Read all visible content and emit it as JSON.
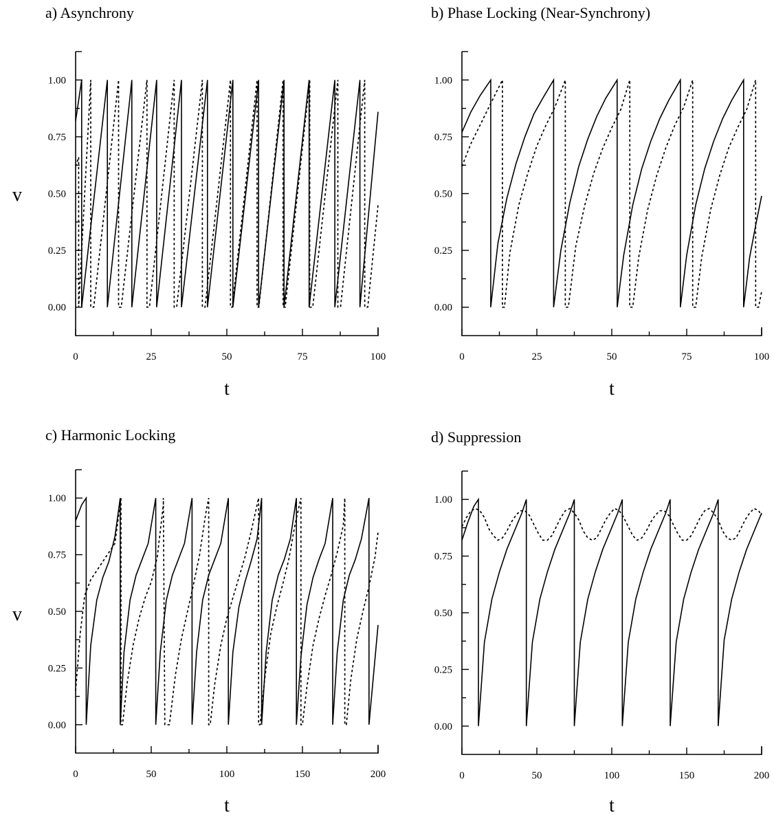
{
  "chart_data": [
    {
      "type": "line",
      "title": "a)  Asynchrony",
      "xlabel": "t",
      "ylabel": "v",
      "xlim": [
        0,
        100
      ],
      "ylim": [
        -0.125,
        1.125
      ],
      "xticks": [
        0,
        25,
        50,
        75,
        100
      ],
      "xtick_labels": [
        "0",
        "25",
        "50",
        "75",
        "100"
      ],
      "yticks": [
        0,
        0.25,
        0.5,
        0.75,
        1
      ],
      "ytick_labels": [
        "0.00",
        "0.25",
        "0.50",
        "0.75",
        "1.00"
      ],
      "grid": false,
      "series": [
        {
          "style": "solid",
          "x": [
            0,
            2,
            2.001,
            10.5,
            10.501,
            18.6,
            18.601,
            26.8,
            26.801,
            35,
            35.001,
            43.6,
            43.601,
            52,
            52.001,
            60.5,
            60.501,
            68.9,
            68.901,
            77.2,
            77.201,
            85.7,
            85.701,
            94,
            94.001,
            100
          ],
          "y": [
            0.82,
            1,
            0,
            1,
            0,
            1,
            0,
            1,
            0,
            1,
            0,
            1,
            0,
            1,
            0,
            1,
            0,
            1,
            0,
            1,
            0,
            1,
            0,
            1,
            0,
            0.86
          ]
        },
        {
          "style": "dotted",
          "x": [
            0,
            1,
            1.001,
            5,
            5.001,
            6,
            14.2,
            14.201,
            15.1,
            23.6,
            23.601,
            24.4,
            32.6,
            32.601,
            33.4,
            41.9,
            41.901,
            42.8,
            51.2,
            51.201,
            51.8,
            60,
            60.001,
            60.6,
            68.6,
            68.601,
            69.3,
            77.4,
            77.401,
            78.4,
            86.7,
            86.701,
            87.6,
            95.6,
            95.601,
            96.6,
            100
          ],
          "y": [
            0.62,
            0.66,
            0,
            1,
            0,
            0,
            1,
            0,
            0,
            1,
            0,
            0,
            1,
            0,
            0,
            1,
            0,
            0,
            1,
            0,
            0,
            1,
            0,
            0,
            1,
            0,
            0,
            1,
            0,
            0,
            1,
            0,
            0,
            1,
            0,
            0,
            0.45
          ]
        }
      ]
    },
    {
      "type": "line",
      "title": "b)  Phase Locking (Near-Synchrony)",
      "xlabel": "t",
      "ylabel": "",
      "xlim": [
        0,
        100
      ],
      "ylim": [
        -0.125,
        1.125
      ],
      "xticks": [
        0,
        25,
        50,
        75,
        100
      ],
      "xtick_labels": [
        "0",
        "25",
        "50",
        "75",
        "100"
      ],
      "yticks": [
        0,
        0.25,
        0.5,
        0.75,
        1
      ],
      "ytick_labels": [
        "0.00",
        "0.25",
        "0.50",
        "0.75",
        "1.00"
      ],
      "grid": false,
      "series": [
        {
          "style": "solid",
          "x": [
            0,
            3,
            6,
            9.6,
            9.601,
            12,
            15,
            18,
            21,
            24,
            27,
            30.6,
            30.601,
            33,
            36,
            39,
            42,
            45,
            48,
            51.8,
            51.801,
            54,
            57,
            60,
            63,
            66,
            69,
            72.9,
            72.901,
            75,
            78,
            81,
            84,
            87,
            90,
            94,
            94.001,
            96,
            98,
            100
          ],
          "y": [
            0.77,
            0.86,
            0.93,
            1,
            0,
            0.28,
            0.48,
            0.63,
            0.75,
            0.85,
            0.92,
            1,
            0,
            0.25,
            0.46,
            0.62,
            0.74,
            0.84,
            0.92,
            1,
            0,
            0.23,
            0.45,
            0.61,
            0.73,
            0.83,
            0.91,
            1,
            0,
            0.23,
            0.45,
            0.61,
            0.73,
            0.83,
            0.91,
            1,
            0,
            0.22,
            0.36,
            0.49
          ]
        },
        {
          "style": "dotted",
          "x": [
            0,
            3,
            6,
            9,
            12,
            13.5,
            13.501,
            14.2,
            16,
            19,
            22,
            25,
            28,
            31,
            34.5,
            34.501,
            35.5,
            38,
            41,
            44,
            47,
            50,
            53,
            56,
            56.001,
            57,
            59,
            62,
            65,
            68,
            71,
            74,
            77,
            77.001,
            78,
            80,
            83,
            86,
            89,
            92,
            95,
            98,
            98.001,
            99,
            100
          ],
          "y": [
            0.62,
            0.72,
            0.8,
            0.88,
            0.96,
            1,
            0,
            0,
            0.24,
            0.45,
            0.59,
            0.71,
            0.8,
            0.88,
            1,
            0,
            0,
            0.27,
            0.45,
            0.59,
            0.7,
            0.79,
            0.87,
            1,
            0,
            0,
            0.22,
            0.43,
            0.58,
            0.7,
            0.8,
            0.88,
            1,
            0,
            0,
            0.22,
            0.43,
            0.58,
            0.7,
            0.79,
            0.87,
            1,
            0,
            0,
            0.07
          ]
        }
      ]
    },
    {
      "type": "line",
      "title": "c)  Harmonic Locking",
      "xlabel": "t",
      "ylabel": "v",
      "xlim": [
        0,
        200
      ],
      "ylim": [
        -0.125,
        1.125
      ],
      "xticks": [
        0,
        50,
        100,
        150,
        200
      ],
      "xtick_labels": [
        "0",
        "50",
        "100",
        "150",
        "200"
      ],
      "yticks": [
        0,
        0.25,
        0.5,
        0.75,
        1
      ],
      "ytick_labels": [
        "0.00",
        "0.25",
        "0.50",
        "0.75",
        "1.00"
      ],
      "grid": false,
      "series": [
        {
          "style": "solid",
          "x": [
            0,
            4,
            7,
            7.001,
            10,
            14,
            18,
            22,
            26,
            29.5,
            29.501,
            32,
            36,
            40,
            44,
            48,
            53,
            53.001,
            56,
            60,
            64,
            68,
            72,
            77,
            77.001,
            80,
            84,
            88,
            92,
            96,
            101,
            101.001,
            104,
            108,
            112,
            116,
            120,
            123,
            123.001,
            126,
            130,
            134,
            138,
            142,
            146,
            146.001,
            149,
            153,
            157,
            161,
            165,
            170,
            170.001,
            173,
            177,
            181,
            185,
            189,
            194,
            194.001,
            197,
            200
          ],
          "y": [
            0.9,
            0.97,
            1,
            0,
            0.35,
            0.55,
            0.65,
            0.72,
            0.83,
            1,
            0,
            0.32,
            0.55,
            0.66,
            0.73,
            0.8,
            1,
            0,
            0.32,
            0.55,
            0.66,
            0.73,
            0.8,
            1,
            0,
            0.32,
            0.55,
            0.66,
            0.73,
            0.8,
            1,
            0,
            0.32,
            0.52,
            0.63,
            0.72,
            0.82,
            1,
            0,
            0.32,
            0.55,
            0.66,
            0.73,
            0.82,
            1,
            0,
            0.3,
            0.53,
            0.65,
            0.73,
            0.8,
            1,
            0,
            0.32,
            0.55,
            0.66,
            0.73,
            0.82,
            1,
            0,
            0.22,
            0.44
          ]
        },
        {
          "style": "dotted",
          "x": [
            0,
            3,
            6,
            10,
            14,
            18,
            22,
            26,
            30,
            30.001,
            31,
            34,
            38,
            42,
            46,
            50,
            54,
            58,
            58.001,
            59,
            62,
            66,
            70,
            74,
            78,
            82,
            86,
            88,
            88.001,
            89,
            92,
            96,
            100,
            104,
            108,
            112,
            116,
            120,
            121,
            121.001,
            122,
            125,
            129,
            133,
            137,
            141,
            145,
            149,
            149.001,
            150,
            153,
            157,
            161,
            165,
            169,
            173,
            177,
            178,
            178.001,
            179,
            182,
            186,
            190,
            194,
            198,
            200
          ],
          "y": [
            0.15,
            0.4,
            0.57,
            0.64,
            0.68,
            0.72,
            0.76,
            0.8,
            1,
            0,
            0,
            0.18,
            0.35,
            0.47,
            0.56,
            0.63,
            0.74,
            0.97,
            1,
            0,
            0,
            0.22,
            0.38,
            0.5,
            0.62,
            0.75,
            0.93,
            1,
            0,
            0,
            0.18,
            0.35,
            0.47,
            0.56,
            0.65,
            0.74,
            0.85,
            0.97,
            1,
            0,
            0,
            0.2,
            0.4,
            0.52,
            0.62,
            0.73,
            0.88,
            1,
            0,
            0,
            0.17,
            0.35,
            0.47,
            0.57,
            0.66,
            0.76,
            0.88,
            1,
            0,
            0,
            0.2,
            0.38,
            0.5,
            0.61,
            0.74,
            0.85
          ]
        }
      ]
    },
    {
      "type": "line",
      "title": "d)  Suppression",
      "xlabel": "t",
      "ylabel": "",
      "xlim": [
        0,
        200
      ],
      "ylim": [
        -0.125,
        1.125
      ],
      "xticks": [
        0,
        50,
        100,
        150,
        200
      ],
      "xtick_labels": [
        "0",
        "50",
        "100",
        "150",
        "200"
      ],
      "yticks": [
        0,
        0.25,
        0.5,
        0.75,
        1
      ],
      "ytick_labels": [
        "0.00",
        "0.25",
        "0.50",
        "0.75",
        "1.00"
      ],
      "grid": false,
      "series": [
        {
          "style": "solid",
          "x": [
            0,
            4,
            8,
            11,
            11.001,
            15,
            20,
            25,
            30,
            35,
            40,
            43,
            43.001,
            47,
            52,
            57,
            62,
            67,
            72,
            75,
            75.001,
            79,
            84,
            89,
            94,
            99,
            104,
            107,
            107.001,
            111,
            116,
            121,
            126,
            131,
            136,
            139,
            139.001,
            143,
            148,
            153,
            158,
            163,
            168,
            171,
            171.001,
            175,
            180,
            185,
            190,
            195,
            200
          ],
          "y": [
            0.82,
            0.9,
            0.97,
            1,
            0,
            0.37,
            0.56,
            0.68,
            0.78,
            0.86,
            0.94,
            1,
            0,
            0.37,
            0.56,
            0.68,
            0.78,
            0.86,
            0.94,
            1,
            0,
            0.37,
            0.56,
            0.68,
            0.78,
            0.86,
            0.94,
            1,
            0,
            0.37,
            0.56,
            0.68,
            0.78,
            0.86,
            0.94,
            1,
            0,
            0.37,
            0.56,
            0.68,
            0.78,
            0.86,
            0.94,
            1,
            0,
            0.38,
            0.56,
            0.68,
            0.78,
            0.86,
            0.94
          ]
        },
        {
          "style": "dotted",
          "x": [
            0,
            3,
            6,
            9,
            12,
            15,
            18,
            21,
            24,
            27,
            30,
            33,
            36,
            39,
            42,
            45,
            48,
            51,
            54,
            57,
            60,
            63,
            66,
            69,
            72,
            75,
            78,
            81,
            84,
            87,
            90,
            93,
            96,
            99,
            102,
            105,
            108,
            111,
            114,
            117,
            120,
            123,
            126,
            129,
            132,
            135,
            138,
            141,
            144,
            147,
            150,
            153,
            156,
            159,
            162,
            165,
            168,
            171,
            174,
            177,
            180,
            183,
            186,
            189,
            192,
            195,
            198,
            200
          ],
          "y": [
            0.88,
            0.92,
            0.95,
            0.96,
            0.95,
            0.92,
            0.87,
            0.84,
            0.82,
            0.83,
            0.86,
            0.9,
            0.93,
            0.95,
            0.95,
            0.93,
            0.89,
            0.85,
            0.82,
            0.82,
            0.84,
            0.88,
            0.92,
            0.95,
            0.96,
            0.94,
            0.91,
            0.86,
            0.83,
            0.82,
            0.83,
            0.87,
            0.91,
            0.94,
            0.96,
            0.95,
            0.92,
            0.88,
            0.84,
            0.82,
            0.83,
            0.86,
            0.9,
            0.93,
            0.95,
            0.95,
            0.93,
            0.89,
            0.85,
            0.82,
            0.82,
            0.84,
            0.88,
            0.92,
            0.95,
            0.96,
            0.94,
            0.91,
            0.86,
            0.83,
            0.82,
            0.83,
            0.87,
            0.91,
            0.94,
            0.96,
            0.95,
            0.93
          ]
        }
      ]
    }
  ]
}
